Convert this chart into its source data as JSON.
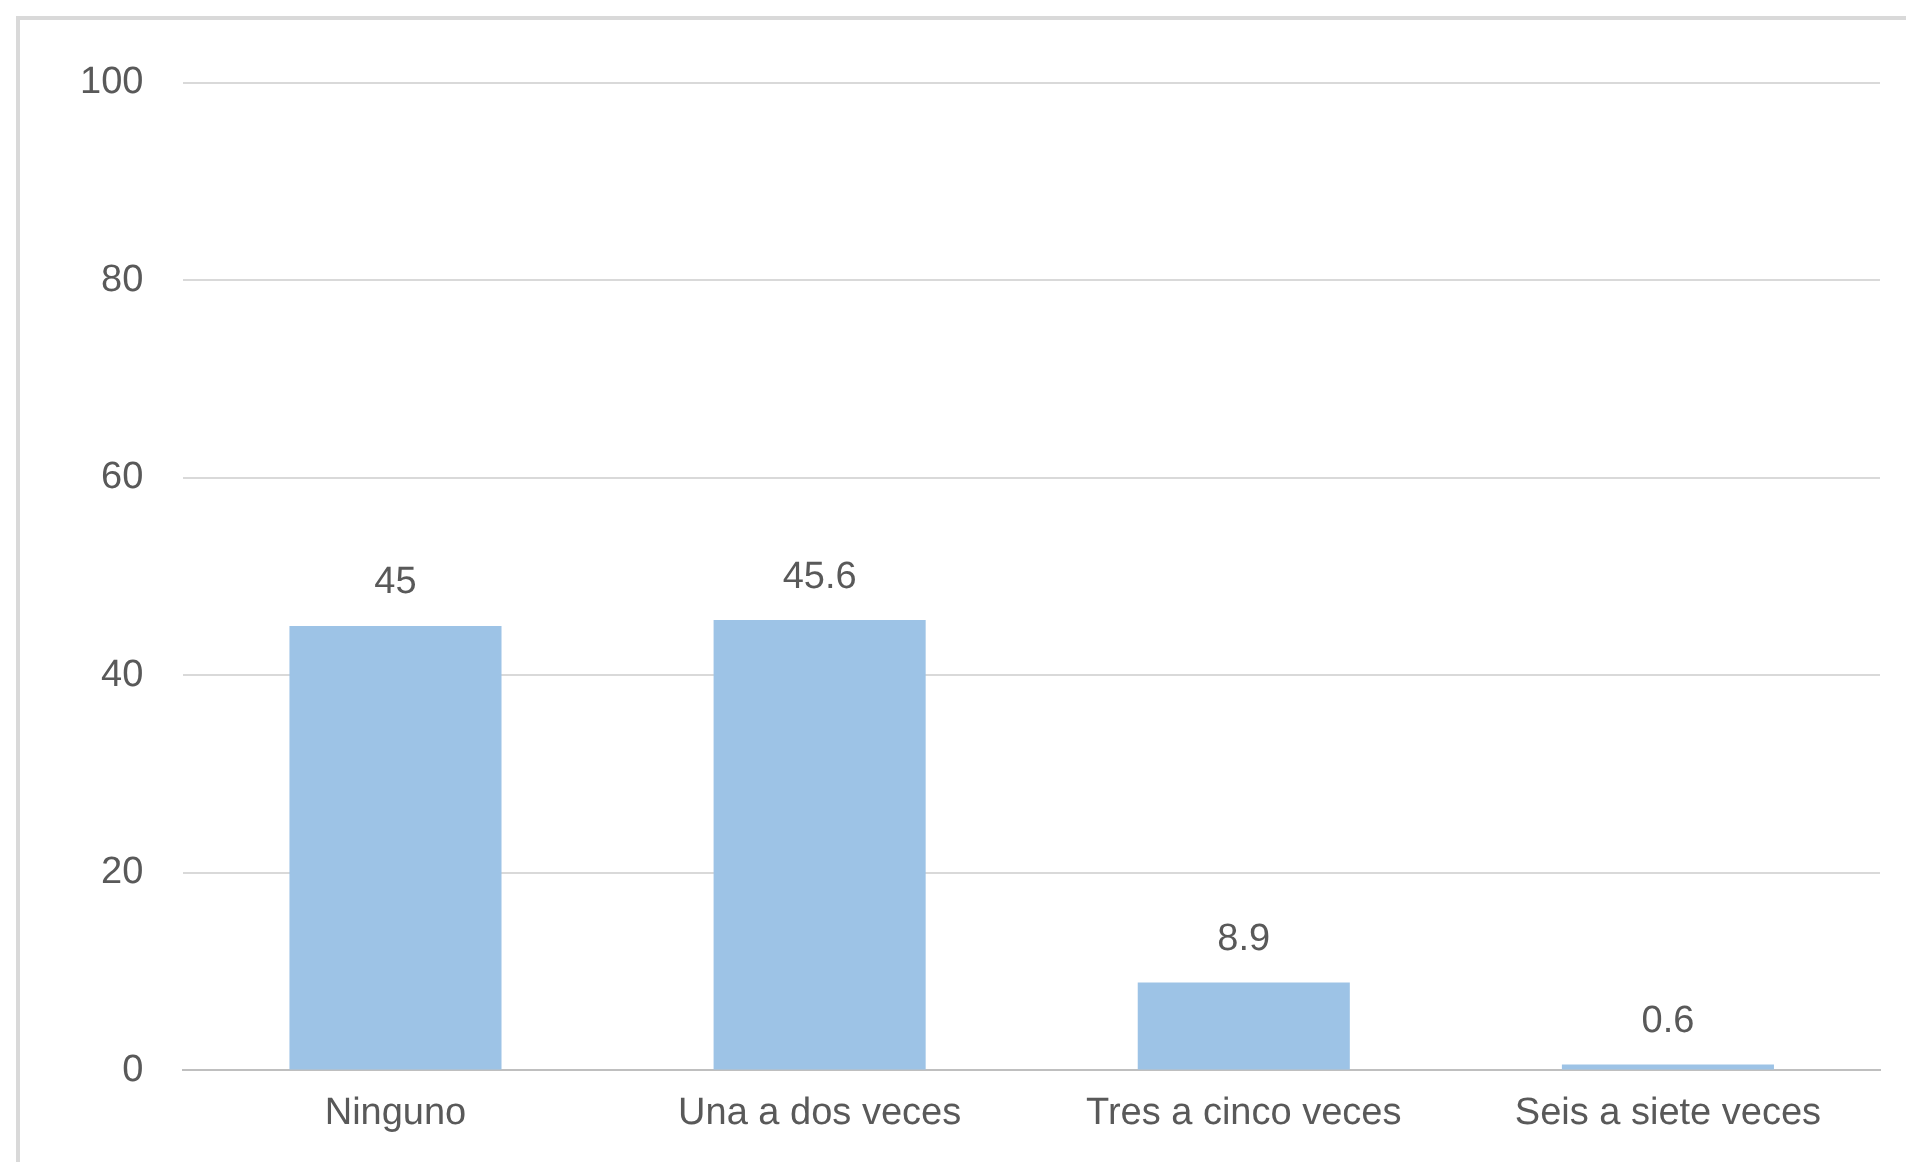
{
  "chart_data": {
    "type": "bar",
    "categories": [
      "Ninguno",
      "Una a dos veces",
      "Tres a cinco veces",
      "Seis a siete veces"
    ],
    "values": [
      45,
      45.6,
      8.9,
      0.6
    ],
    "color": "#9dc3e6",
    "ylim": [
      0,
      100
    ],
    "yticks": [
      0,
      20,
      40,
      60,
      80,
      100
    ],
    "grid": "y",
    "data_labels": true
  }
}
